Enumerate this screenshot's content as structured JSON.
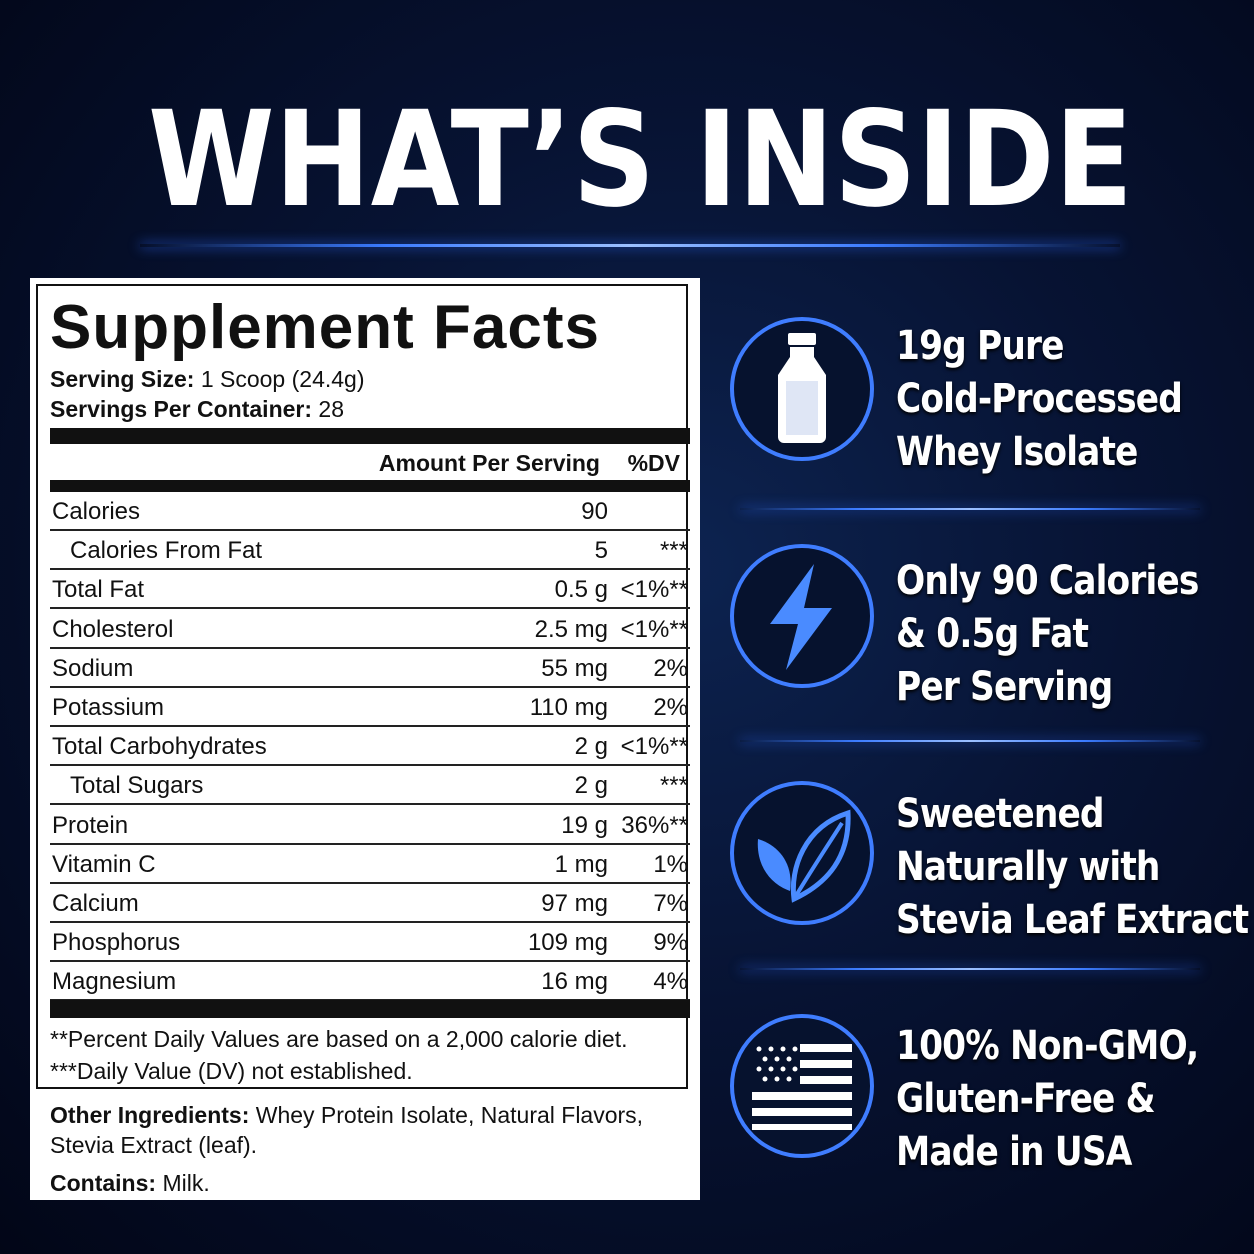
{
  "title": "WHAT’S INSIDE",
  "facts": {
    "title": "Supplement Facts",
    "serving_size": {
      "label": "Serving Size:",
      "value": "1 Scoop (24.4g)"
    },
    "servings": {
      "label": "Servings Per Container:",
      "value": "28"
    },
    "header": {
      "amount": "Amount Per Serving",
      "dv": "%DV"
    },
    "rows": [
      [
        "Calories",
        "90",
        ""
      ],
      [
        "Calories From Fat",
        "5",
        "***"
      ],
      [
        "Total Fat",
        "0.5 g",
        "<1%**"
      ],
      [
        "Cholesterol",
        "2.5 mg",
        "<1%**"
      ],
      [
        "Sodium",
        "55 mg",
        "2%"
      ],
      [
        "Potassium",
        "110 mg",
        "2%"
      ],
      [
        "Total Carbohydrates",
        "2 g",
        "<1%**"
      ],
      [
        "Total Sugars",
        "2 g",
        "***"
      ],
      [
        "Protein",
        "19 g",
        "36%**"
      ],
      [
        "Vitamin C",
        "1 mg",
        "1%"
      ],
      [
        "Calcium",
        "97 mg",
        "7%"
      ],
      [
        "Phosphorus",
        "109 mg",
        "9%"
      ],
      [
        "Magnesium",
        "16 mg",
        "4%"
      ]
    ],
    "footnotes": [
      "**Percent Daily Values are based on a 2,000 calorie diet.",
      "***Daily Value (DV) not established."
    ],
    "other_ingredients": {
      "label": "Other Ingredients:",
      "value": "Whey Protein Isolate, Natural Flavors, Stevia Extract (leaf)."
    },
    "contains": {
      "label": "Contains:",
      "value": "Milk."
    }
  },
  "features": [
    {
      "lines": [
        "19g Pure",
        "Cold-Processed",
        "Whey Isolate"
      ]
    },
    {
      "lines": [
        "Only 90 Calories",
        "& 0.5g Fat",
        "Per Serving"
      ]
    },
    {
      "lines": [
        "Sweetened",
        "Naturally with",
        "Stevia Leaf Extract"
      ]
    },
    {
      "lines": [
        "100% Non-GMO,",
        "Gluten-Free &",
        "Made in USA"
      ]
    }
  ]
}
